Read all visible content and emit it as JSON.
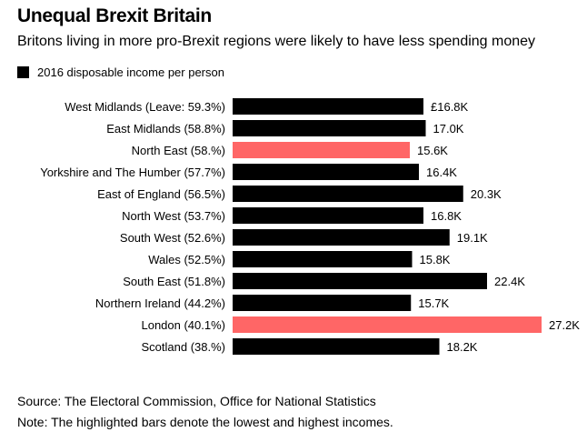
{
  "title": "Unequal Brexit Britain",
  "subtitle": "Britons living in more pro-Brexit regions were likely to have less spending money",
  "legend": {
    "label": "2016 disposable income per person"
  },
  "colors": {
    "bar": "#000000",
    "highlight": "#ff6666",
    "text": "#000000"
  },
  "chart_data": {
    "type": "bar",
    "orientation": "horizontal",
    "title": "Unequal Brexit Britain",
    "series_name": "2016 disposable income per person",
    "unit": "£ thousands",
    "xlim": [
      0,
      27.2
    ],
    "categories": [
      "West Midlands (Leave: 59.3%)",
      "East Midlands (58.8%)",
      "North East (58.%)",
      "Yorkshire and The Humber (57.7%)",
      "East of England (56.5%)",
      "North West (53.7%)",
      "South West (52.6%)",
      "Wales (52.5%)",
      "South East (51.8%)",
      "Northern Ireland (44.2%)",
      "London (40.1%)",
      "Scotland (38.%)"
    ],
    "values": [
      16.8,
      17.0,
      15.6,
      16.4,
      20.3,
      16.8,
      19.1,
      15.8,
      22.4,
      15.7,
      27.2,
      18.2
    ],
    "value_labels": [
      "£16.8K",
      "17.0K",
      "15.6K",
      "16.4K",
      "20.3K",
      "16.8K",
      "19.1K",
      "15.8K",
      "22.4K",
      "15.7K",
      "27.2K",
      "18.2K"
    ],
    "highlighted": [
      false,
      false,
      true,
      false,
      false,
      false,
      false,
      false,
      false,
      false,
      true,
      false
    ]
  },
  "footer": {
    "source": "Source: The Electoral Commission, Office for National Statistics",
    "note": "Note: The highlighted bars denote the lowest and highest incomes."
  }
}
